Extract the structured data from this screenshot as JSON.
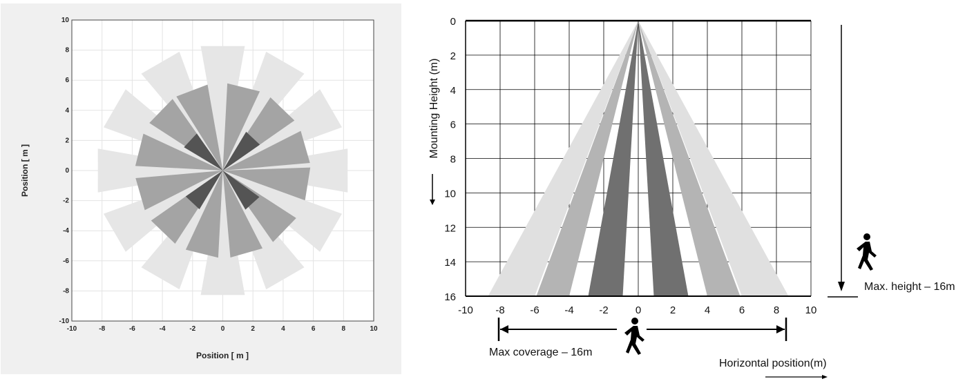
{
  "chart_data": [
    {
      "type": "polar-coverage",
      "title": "",
      "xlabel": "Position [ m ]",
      "ylabel": "Position [ m ]",
      "xlim": [
        -10,
        10
      ],
      "ylim": [
        -10,
        10
      ],
      "xticks": [
        -10,
        -8,
        -6,
        -4,
        -2,
        0,
        2,
        4,
        6,
        8,
        10
      ],
      "yticks": [
        -10,
        -8,
        -6,
        -4,
        -2,
        0,
        2,
        4,
        6,
        8,
        10
      ],
      "grid": true,
      "rings": [
        {
          "name": "outer",
          "color": "#e6e6e6",
          "radius_range": [
            0,
            8.4
          ],
          "sector_width_deg": 20,
          "start_angles_deg": [
            80,
            110,
            140,
            170,
            200,
            230,
            260,
            290,
            320,
            350,
            20,
            50
          ]
        },
        {
          "name": "middle",
          "color": "#a4a4a4",
          "radius_range": [
            0,
            5.8
          ],
          "sector_width_deg": 22,
          "start_angles_deg": [
            65,
            100,
            125,
            155,
            185,
            215,
            245,
            275,
            305,
            340,
            5,
            35
          ]
        },
        {
          "name": "inner",
          "color": "#545454",
          "radius_range": [
            0,
            3.0
          ],
          "sector_width_deg": 24,
          "start_angles_deg": [
            35,
            125,
            215,
            300
          ]
        }
      ]
    },
    {
      "type": "fan-coverage",
      "title": "",
      "xlabel": "Horizontal position(m)",
      "ylabel": "Mounting Height (m)",
      "xlim": [
        -10,
        10
      ],
      "ylim": [
        0,
        16
      ],
      "xticks": [
        "-10",
        "-8",
        "-6",
        "-4",
        "-2",
        "0",
        "2",
        "4",
        "6",
        "8",
        "10"
      ],
      "yticks": [
        "0",
        "2",
        "4",
        "6",
        "8",
        "10",
        "12",
        "14",
        "16"
      ],
      "grid": true,
      "apex": [
        0,
        0
      ],
      "beams": [
        {
          "name": "outer-left",
          "color": "#e0e0e0",
          "bottom_x": [
            -8.7,
            -6.0
          ]
        },
        {
          "name": "mid-left",
          "color": "#b4b4b4",
          "bottom_x": [
            -5.9,
            -4.0
          ]
        },
        {
          "name": "inner-left",
          "color": "#707070",
          "bottom_x": [
            -2.9,
            -0.9
          ]
        },
        {
          "name": "inner-right",
          "color": "#707070",
          "bottom_x": [
            0.9,
            2.9
          ]
        },
        {
          "name": "mid-right",
          "color": "#b4b4b4",
          "bottom_x": [
            4.0,
            5.9
          ]
        },
        {
          "name": "outer-right",
          "color": "#e0e0e0",
          "bottom_x": [
            6.0,
            8.7
          ]
        }
      ],
      "annotations": {
        "max_coverage": "Max coverage – 16m",
        "max_height": "Max. height – 16m"
      }
    }
  ]
}
